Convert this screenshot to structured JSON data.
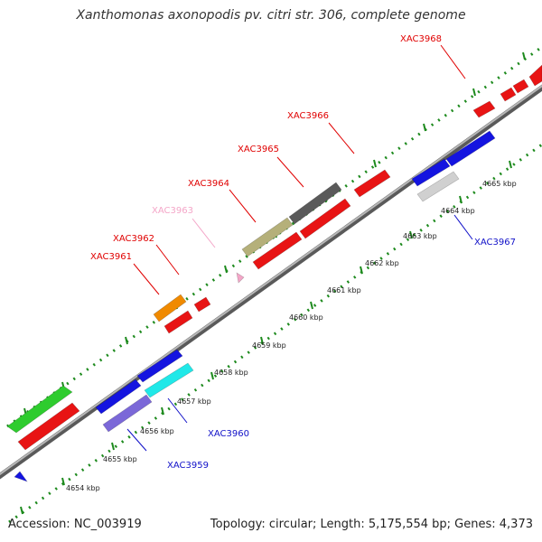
{
  "title": "Xanthomonas axonopodis pv. citri str. 306, complete genome",
  "footer": {
    "accession": "Accession: NC_003919",
    "summary": "Topology: circular; Length: 5,175,554 bp; Genes: 4,373"
  },
  "colors": {
    "backbone": "#9a9a9a",
    "tick_green": "#1d8a1d",
    "forward_label": "#e00000",
    "reverse_label": "#1010c8",
    "pseudo_label": "#f4a6c8"
  },
  "scale_labels": [
    "4654 kbp",
    "4655 kbp",
    "4656 kbp",
    "4657 kbp",
    "4658 kbp",
    "4659 kbp",
    "4660 kbp",
    "4661 kbp",
    "4662 kbp",
    "4663 kbp",
    "4664 kbp",
    "4665 kbp"
  ],
  "gene_labels": [
    {
      "name": "XAC3959",
      "strand": "reverse"
    },
    {
      "name": "XAC3960",
      "strand": "reverse"
    },
    {
      "name": "XAC3961",
      "strand": "forward"
    },
    {
      "name": "XAC3962",
      "strand": "forward"
    },
    {
      "name": "XAC3963",
      "strand": "pseudo"
    },
    {
      "name": "XAC3964",
      "strand": "forward"
    },
    {
      "name": "XAC3965",
      "strand": "forward"
    },
    {
      "name": "XAC3966",
      "strand": "forward"
    },
    {
      "name": "XAC3967",
      "strand": "reverse"
    },
    {
      "name": "XAC3968",
      "strand": "forward"
    }
  ],
  "genes": [
    {
      "color": "#2ecc2e",
      "strand": "forward"
    },
    {
      "color": "#e81414",
      "strand": "forward"
    },
    {
      "color": "#1414e0",
      "strand": "reverse"
    },
    {
      "color": "#1414e0",
      "strand": "reverse"
    },
    {
      "color": "#1414e0",
      "strand": "reverse"
    },
    {
      "color": "#20e8e8",
      "strand": "reverse"
    },
    {
      "color": "#7b68d8",
      "strand": "reverse"
    },
    {
      "color": "#f08a00",
      "strand": "forward"
    },
    {
      "color": "#e81414",
      "strand": "forward"
    },
    {
      "color": "#e81414",
      "strand": "forward"
    },
    {
      "color": "#f4a6c8",
      "strand": "forward"
    },
    {
      "color": "#b5b07a",
      "strand": "forward"
    },
    {
      "color": "#e81414",
      "strand": "forward"
    },
    {
      "color": "#5a5a5a",
      "strand": "forward"
    },
    {
      "color": "#e81414",
      "strand": "forward"
    },
    {
      "color": "#e81414",
      "strand": "forward"
    },
    {
      "color": "#1414e0",
      "strand": "reverse"
    },
    {
      "color": "#1414e0",
      "strand": "reverse"
    },
    {
      "color": "#d0d0d0",
      "strand": "reverse"
    },
    {
      "color": "#e81414",
      "strand": "forward"
    },
    {
      "color": "#e81414",
      "strand": "forward"
    },
    {
      "color": "#e81414",
      "strand": "forward"
    },
    {
      "color": "#e81414",
      "strand": "forward"
    }
  ]
}
